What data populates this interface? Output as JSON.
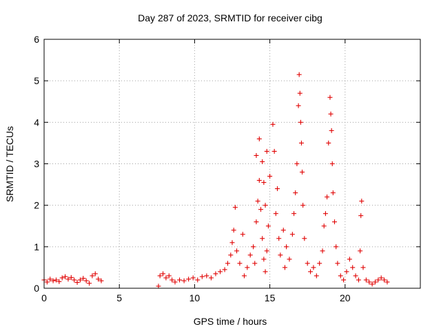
{
  "chart_data": {
    "type": "scatter",
    "title": "Day 287 of 2023, SRMTID for receiver cibg",
    "xlabel": "GPS time / hours",
    "ylabel": "SRMTID / TECUs",
    "xlim": [
      0,
      25
    ],
    "ylim": [
      0,
      6
    ],
    "xticks": [
      "0",
      "5",
      "10",
      "15",
      "20"
    ],
    "yticks": [
      "0",
      "1",
      "2",
      "3",
      "4",
      "5",
      "6"
    ],
    "grid": true,
    "marker_color": "#e00000",
    "series": [
      {
        "name": "SRMTID",
        "points": [
          [
            0.0,
            0.2
          ],
          [
            0.2,
            0.15
          ],
          [
            0.4,
            0.22
          ],
          [
            0.6,
            0.18
          ],
          [
            0.8,
            0.2
          ],
          [
            1.0,
            0.16
          ],
          [
            1.2,
            0.25
          ],
          [
            1.4,
            0.28
          ],
          [
            1.6,
            0.22
          ],
          [
            1.8,
            0.26
          ],
          [
            2.0,
            0.2
          ],
          [
            2.2,
            0.14
          ],
          [
            2.4,
            0.2
          ],
          [
            2.6,
            0.24
          ],
          [
            2.8,
            0.18
          ],
          [
            3.0,
            0.12
          ],
          [
            3.2,
            0.3
          ],
          [
            3.4,
            0.35
          ],
          [
            3.6,
            0.22
          ],
          [
            3.8,
            0.18
          ],
          [
            7.6,
            0.05
          ],
          [
            7.7,
            0.3
          ],
          [
            7.9,
            0.35
          ],
          [
            8.1,
            0.25
          ],
          [
            8.3,
            0.3
          ],
          [
            8.5,
            0.2
          ],
          [
            8.7,
            0.15
          ],
          [
            9.0,
            0.2
          ],
          [
            9.3,
            0.18
          ],
          [
            9.6,
            0.22
          ],
          [
            9.9,
            0.25
          ],
          [
            10.2,
            0.2
          ],
          [
            10.5,
            0.28
          ],
          [
            10.8,
            0.3
          ],
          [
            11.1,
            0.25
          ],
          [
            11.4,
            0.35
          ],
          [
            11.7,
            0.4
          ],
          [
            12.0,
            0.45
          ],
          [
            12.2,
            0.6
          ],
          [
            12.4,
            0.8
          ],
          [
            12.5,
            1.1
          ],
          [
            12.6,
            1.4
          ],
          [
            12.7,
            1.95
          ],
          [
            12.8,
            0.9
          ],
          [
            13.0,
            0.6
          ],
          [
            13.2,
            1.3
          ],
          [
            13.3,
            0.3
          ],
          [
            13.5,
            0.5
          ],
          [
            13.7,
            0.8
          ],
          [
            13.9,
            1.0
          ],
          [
            14.0,
            0.6
          ],
          [
            14.1,
            1.6
          ],
          [
            14.2,
            2.1
          ],
          [
            14.3,
            2.6
          ],
          [
            14.4,
            1.9
          ],
          [
            14.5,
            1.2
          ],
          [
            14.6,
            0.7
          ],
          [
            14.7,
            0.4
          ],
          [
            14.8,
            0.9
          ],
          [
            14.9,
            1.5
          ],
          [
            14.1,
            3.2
          ],
          [
            14.3,
            3.6
          ],
          [
            14.5,
            3.05
          ],
          [
            14.6,
            2.55
          ],
          [
            14.7,
            2.0
          ],
          [
            14.8,
            3.3
          ],
          [
            15.0,
            2.7
          ],
          [
            15.2,
            3.95
          ],
          [
            15.3,
            3.3
          ],
          [
            15.4,
            1.8
          ],
          [
            15.5,
            2.4
          ],
          [
            15.6,
            1.2
          ],
          [
            15.7,
            0.8
          ],
          [
            15.9,
            1.4
          ],
          [
            16.0,
            0.5
          ],
          [
            16.1,
            1.0
          ],
          [
            16.3,
            0.7
          ],
          [
            16.5,
            1.3
          ],
          [
            16.6,
            1.8
          ],
          [
            16.7,
            2.3
          ],
          [
            16.8,
            3.0
          ],
          [
            16.9,
            4.4
          ],
          [
            16.95,
            5.15
          ],
          [
            17.0,
            4.7
          ],
          [
            17.05,
            4.0
          ],
          [
            17.1,
            3.5
          ],
          [
            17.15,
            2.8
          ],
          [
            17.2,
            2.0
          ],
          [
            17.3,
            1.2
          ],
          [
            17.5,
            0.6
          ],
          [
            17.7,
            0.4
          ],
          [
            17.9,
            0.5
          ],
          [
            18.1,
            0.3
          ],
          [
            18.3,
            0.6
          ],
          [
            18.5,
            0.9
          ],
          [
            18.6,
            1.5
          ],
          [
            18.7,
            1.8
          ],
          [
            18.8,
            2.2
          ],
          [
            18.9,
            3.5
          ],
          [
            19.0,
            4.6
          ],
          [
            19.05,
            4.2
          ],
          [
            19.1,
            3.8
          ],
          [
            19.15,
            3.0
          ],
          [
            19.2,
            2.3
          ],
          [
            19.3,
            1.6
          ],
          [
            19.4,
            1.0
          ],
          [
            19.5,
            0.6
          ],
          [
            19.7,
            0.3
          ],
          [
            19.9,
            0.2
          ],
          [
            20.1,
            0.4
          ],
          [
            20.3,
            0.7
          ],
          [
            20.5,
            0.5
          ],
          [
            20.7,
            0.3
          ],
          [
            20.9,
            0.2
          ],
          [
            21.0,
            0.9
          ],
          [
            21.05,
            1.75
          ],
          [
            21.1,
            2.1
          ],
          [
            21.2,
            0.5
          ],
          [
            21.4,
            0.2
          ],
          [
            21.6,
            0.15
          ],
          [
            21.8,
            0.1
          ],
          [
            22.0,
            0.15
          ],
          [
            22.2,
            0.2
          ],
          [
            22.4,
            0.25
          ],
          [
            22.6,
            0.2
          ],
          [
            22.8,
            0.15
          ]
        ]
      }
    ]
  }
}
